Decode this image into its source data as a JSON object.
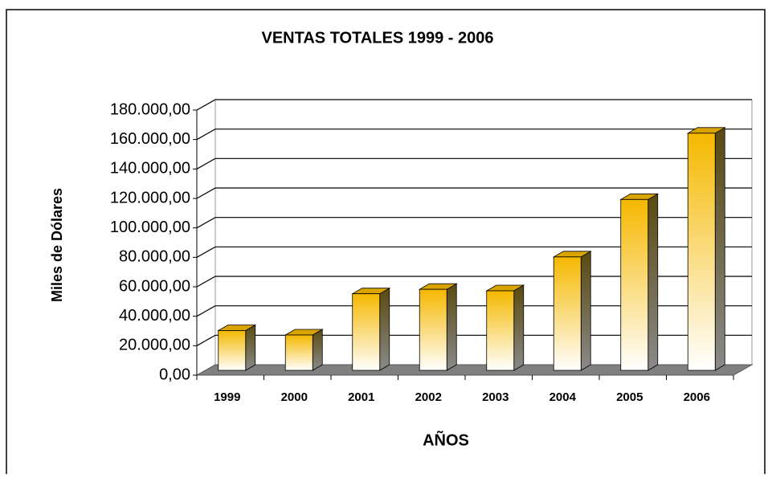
{
  "chart_data": {
    "type": "bar3d",
    "title": "VENTAS TOTALES 1999 - 2006",
    "x_label": "AÑOS",
    "y_label": "Miles de Dólares",
    "categories": [
      "1999",
      "2000",
      "2001",
      "2002",
      "2003",
      "2004",
      "2005",
      "2006"
    ],
    "values": [
      27000,
      24000,
      52000,
      55000,
      54000,
      77000,
      116000,
      161000
    ],
    "color": "#f5b800",
    "ylim": [
      0,
      180000
    ],
    "yticks": [
      {
        "value": 0,
        "label": "0,00"
      },
      {
        "value": 20000,
        "label": "20.000,00"
      },
      {
        "value": 40000,
        "label": "40.000,00"
      },
      {
        "value": 60000,
        "label": "60.000,00"
      },
      {
        "value": 80000,
        "label": "80.000,00"
      },
      {
        "value": 100000,
        "label": "100.000,00"
      },
      {
        "value": 120000,
        "label": "120.000,00"
      },
      {
        "value": 140000,
        "label": "140.000,00"
      },
      {
        "value": 160000,
        "label": "160.000,00"
      },
      {
        "value": 180000,
        "label": "180.000,00"
      }
    ],
    "grid": true
  }
}
